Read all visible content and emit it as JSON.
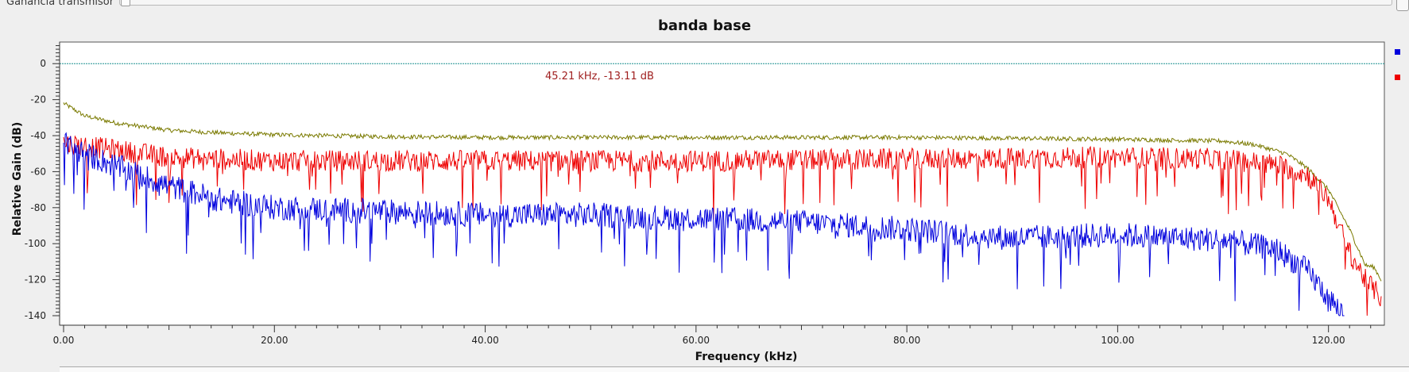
{
  "controls": {
    "slider_label": "Ganancia transmisor"
  },
  "chart_data": {
    "type": "line",
    "title": "banda base",
    "xlabel": "Frequency (kHz)",
    "ylabel": "Relative Gain (dB)",
    "xlim": [
      0,
      125
    ],
    "ylim": [
      -140,
      12
    ],
    "x_ticks": [
      "0.00",
      "20.00",
      "40.00",
      "60.00",
      "80.00",
      "100.00",
      "120.00"
    ],
    "y_ticks": [
      "0",
      "-20",
      "-40",
      "-60",
      "-80",
      "-100",
      "-120",
      "-140"
    ],
    "grid": false,
    "reference_line": {
      "y": 0,
      "color": "#1a8f8f"
    },
    "marker_readout": "45.21 kHz, -13.11 dB",
    "legend_placement": "right",
    "series": [
      {
        "color": "#7a7a00",
        "noise": 1.2,
        "spikes": 0,
        "points": [
          [
            0,
            -22
          ],
          [
            2,
            -29
          ],
          [
            5,
            -33
          ],
          [
            10,
            -37
          ],
          [
            15,
            -38.5
          ],
          [
            20,
            -39.5
          ],
          [
            30,
            -40.5
          ],
          [
            40,
            -41
          ],
          [
            60,
            -41
          ],
          [
            80,
            -41
          ],
          [
            100,
            -42
          ],
          [
            110,
            -43
          ],
          [
            113,
            -45
          ],
          [
            116,
            -50
          ],
          [
            118,
            -58
          ],
          [
            120,
            -70
          ],
          [
            122,
            -92
          ],
          [
            123.5,
            -112
          ],
          [
            124.3,
            -113
          ],
          [
            125,
            -120
          ]
        ]
      },
      {
        "color": "#ee0000",
        "noise": 6,
        "spikes": 0.06,
        "points": [
          [
            0,
            -44
          ],
          [
            5,
            -48
          ],
          [
            10,
            -52
          ],
          [
            20,
            -54
          ],
          [
            40,
            -54
          ],
          [
            60,
            -54
          ],
          [
            80,
            -53
          ],
          [
            100,
            -52
          ],
          [
            110,
            -53
          ],
          [
            115,
            -56
          ],
          [
            118,
            -62
          ],
          [
            120,
            -75
          ],
          [
            122,
            -105
          ],
          [
            123.5,
            -120
          ],
          [
            125,
            -130
          ]
        ]
      },
      {
        "color": "#0000dd",
        "noise": 7,
        "spikes": 0.05,
        "points": [
          [
            0,
            -44
          ],
          [
            2,
            -50
          ],
          [
            5,
            -57
          ],
          [
            10,
            -68
          ],
          [
            15,
            -76
          ],
          [
            20,
            -80
          ],
          [
            30,
            -82
          ],
          [
            40,
            -84
          ],
          [
            50,
            -84
          ],
          [
            60,
            -86
          ],
          [
            70,
            -88
          ],
          [
            80,
            -92
          ],
          [
            90,
            -97
          ],
          [
            100,
            -95
          ],
          [
            110,
            -98
          ],
          [
            115,
            -103
          ],
          [
            118,
            -115
          ],
          [
            120,
            -130
          ],
          [
            121.5,
            -140
          ]
        ]
      }
    ]
  }
}
